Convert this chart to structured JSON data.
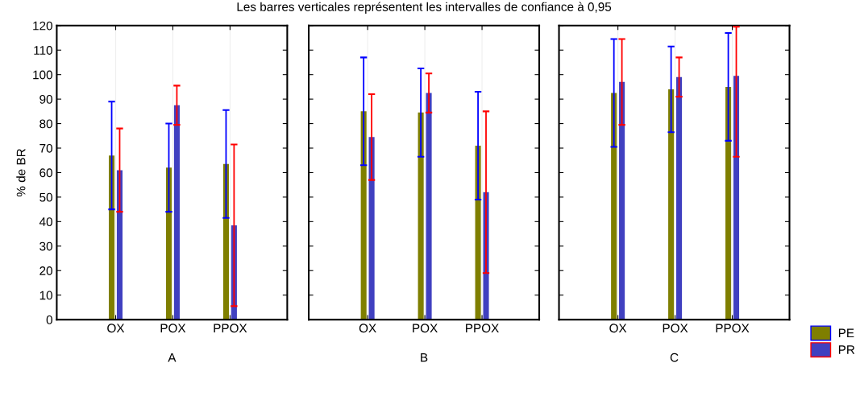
{
  "chart_data": [
    {
      "type": "bar",
      "xlabel": "A",
      "ylabel": "% de BR",
      "categories": [
        "OX",
        "POX",
        "PPOX"
      ],
      "ylim": [
        0,
        120
      ],
      "yticks": [
        0,
        10,
        20,
        30,
        40,
        50,
        60,
        70,
        80,
        90,
        100,
        110,
        120
      ],
      "grid": "x",
      "legend": "bottom right",
      "series": [
        {
          "name": "PE",
          "color": "#7f7f00",
          "values": [
            67,
            62,
            63.5
          ],
          "errors": [
            22,
            18,
            22
          ]
        },
        {
          "name": "PR",
          "color": "#4040c0",
          "values": [
            61,
            87.5,
            38.5
          ],
          "errors": [
            17,
            8,
            33
          ]
        }
      ]
    },
    {
      "type": "bar",
      "title": "Les barres verticales représentent les intervalles de confiance à 0,95",
      "xlabel": "B",
      "categories": [
        "OX",
        "POX",
        "PPOX"
      ],
      "ylim": [
        0,
        120
      ],
      "yticks": [
        0,
        10,
        20,
        30,
        40,
        50,
        60,
        70,
        80,
        90,
        100,
        110,
        120
      ],
      "tick_labels": "x",
      "grid": "x",
      "series": [
        {
          "color": "#7f7f00",
          "values": [
            85,
            84.5,
            71
          ],
          "errors": [
            22,
            18,
            22
          ]
        },
        {
          "color": "#4040c0",
          "values": [
            74.5,
            92.5,
            52
          ],
          "errors": [
            17.5,
            8,
            33
          ]
        }
      ]
    },
    {
      "type": "bar",
      "xlabel": "C",
      "categories": [
        "OX",
        "POX",
        "PPOX"
      ],
      "ylim": [
        0,
        120
      ],
      "yticks": [
        0,
        10,
        20,
        30,
        40,
        50,
        60,
        70,
        80,
        90,
        100,
        110,
        120
      ],
      "tick_labels": "x",
      "grid": "x",
      "series": [
        {
          "color": "#7f7f00",
          "values": [
            92.5,
            94,
            95
          ],
          "errors": [
            22,
            17.5,
            22
          ]
        },
        {
          "color": "#4040c0",
          "values": [
            97,
            99,
            99.5
          ],
          "errors": [
            17.5,
            8,
            [
              66.5,
              119.5
            ]
          ]
        }
      ]
    }
  ]
}
